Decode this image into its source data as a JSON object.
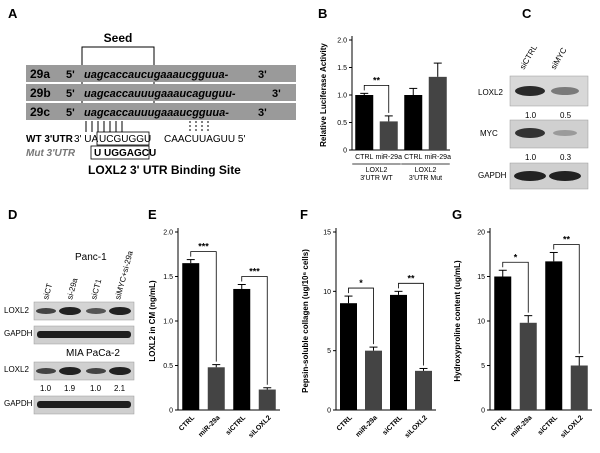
{
  "panels": {
    "A": {
      "label": "A",
      "seed_label": "Seed",
      "rows": [
        {
          "name": "29a",
          "prime5": "5'",
          "seq": "uagcaccaucugaaaucgguua-",
          "prime3": "3'"
        },
        {
          "name": "29b",
          "prime5": "5'",
          "seq": "uagcaccauuugaaaucaguguu-",
          "prime3": "3'"
        },
        {
          "name": "29c",
          "prime5": "5'",
          "seq": "uagcaccauuugaaaucgguua-",
          "prime3": "3'"
        }
      ],
      "wt_label": "WT 3'UTR",
      "wt_seq_left": "3' UA",
      "wt_seed": "UCGUGGU",
      "wt_seq_right": "CAACUUAGUU 5'",
      "mut_label": "Mut 3'UTR",
      "mut_seq": "U UGGAGCU",
      "caption": "LOXL2 3' UTR Binding Site"
    },
    "B": {
      "label": "B"
    },
    "C": {
      "label": "C",
      "lanes": [
        "siCTRL",
        "siMYC"
      ],
      "rows": [
        {
          "name": "LOXL2",
          "values": [
            "1.0",
            "0.5"
          ]
        },
        {
          "name": "MYC",
          "values": [
            "1.0",
            "0.3"
          ]
        },
        {
          "name": "GAPDH",
          "values": []
        }
      ]
    },
    "D": {
      "label": "D",
      "cell_line_1": "Panc-1",
      "cell_line_2": "MIA PaCa-2",
      "lanes": [
        "siCT",
        "si-29a",
        "siCT1",
        "siMYC+si-29a"
      ],
      "row_loxl2": "LOXL2",
      "row_gapdh": "GAPDH",
      "values": [
        "1.0",
        "1.9",
        "1.0",
        "2.1"
      ]
    },
    "E": {
      "label": "E"
    },
    "F": {
      "label": "F"
    },
    "G": {
      "label": "G"
    }
  },
  "chart_data": [
    {
      "panel": "B",
      "type": "bar",
      "ylabel": "Relative Luciferase Activity",
      "ylim": [
        0,
        2.0
      ],
      "yticks": [
        0,
        0.5,
        1.0,
        1.5,
        2.0
      ],
      "categories": [
        "CTRL",
        "miR-29a",
        "CTRL",
        "miR-29a"
      ],
      "values": [
        1.0,
        0.52,
        1.0,
        1.33
      ],
      "errors": [
        0.03,
        0.1,
        0.12,
        0.25
      ],
      "colors": [
        "#000000",
        "#444444",
        "#000000",
        "#444444"
      ],
      "groups": [
        {
          "label": [
            "LOXL2",
            "3'UTR WT"
          ],
          "from": 0,
          "to": 1
        },
        {
          "label": [
            "LOXL2",
            "3'UTR Mut"
          ],
          "from": 2,
          "to": 3
        }
      ],
      "significance": [
        {
          "a": 0,
          "b": 1,
          "text": "**"
        }
      ]
    },
    {
      "panel": "E",
      "type": "bar",
      "ylabel": "LOXL2 in CM (ng/mL)",
      "ylim": [
        0,
        2.0
      ],
      "yticks": [
        0,
        0.5,
        1.0,
        1.5,
        2.0
      ],
      "categories": [
        "CTRL",
        "miR-29a",
        "siCTRL",
        "siLOXL2"
      ],
      "values": [
        1.65,
        0.48,
        1.36,
        0.23
      ],
      "errors": [
        0.04,
        0.03,
        0.05,
        0.02
      ],
      "colors": [
        "#000000",
        "#444444",
        "#000000",
        "#444444"
      ],
      "significance": [
        {
          "a": 0,
          "b": 1,
          "text": "***"
        },
        {
          "a": 2,
          "b": 3,
          "text": "***"
        }
      ]
    },
    {
      "panel": "F",
      "type": "bar",
      "ylabel": "Pepsin-soluble collagen (ug/10⁶ cells)",
      "ylim": [
        0,
        15
      ],
      "yticks": [
        0,
        5,
        10,
        15
      ],
      "categories": [
        "CTRL",
        "miR-29a",
        "siCTRL",
        "siLOXL2"
      ],
      "values": [
        9.0,
        5.0,
        9.7,
        3.3
      ],
      "errors": [
        0.6,
        0.3,
        0.3,
        0.2
      ],
      "colors": [
        "#000000",
        "#444444",
        "#000000",
        "#444444"
      ],
      "significance": [
        {
          "a": 0,
          "b": 1,
          "text": "*"
        },
        {
          "a": 2,
          "b": 3,
          "text": "**"
        }
      ]
    },
    {
      "panel": "G",
      "type": "bar",
      "ylabel": "Hydroxyproline content (ug/mL)",
      "ylim": [
        0,
        20
      ],
      "yticks": [
        0,
        5,
        10,
        15,
        20
      ],
      "categories": [
        "CTRL",
        "miR-29a",
        "siCTRL",
        "siLOXL2"
      ],
      "values": [
        15.0,
        9.8,
        16.7,
        5.0
      ],
      "errors": [
        0.7,
        0.8,
        1.0,
        1.0
      ],
      "colors": [
        "#000000",
        "#444444",
        "#000000",
        "#444444"
      ],
      "significance": [
        {
          "a": 0,
          "b": 1,
          "text": "*"
        },
        {
          "a": 2,
          "b": 3,
          "text": "**"
        }
      ]
    }
  ]
}
